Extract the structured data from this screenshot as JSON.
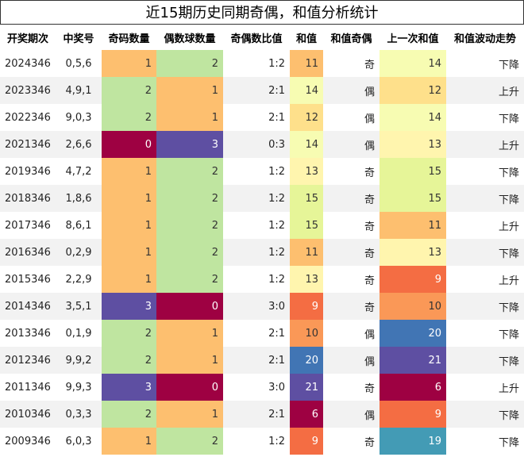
{
  "title": "近15期历史同期奇偶，和值分析统计",
  "colormap": "Spectral",
  "table": {
    "columns": [
      "开奖期次",
      "中奖号",
      "奇码数量",
      "偶数球数量",
      "奇偶数比值",
      "和值",
      "和值奇偶",
      "上一次和值",
      "和值波动走势"
    ],
    "rows": [
      [
        "2024346",
        "0,5,6",
        1,
        2,
        "1:2",
        11,
        "奇",
        14,
        "下降"
      ],
      [
        "2023346",
        "4,9,1",
        2,
        1,
        "2:1",
        14,
        "偶",
        12,
        "上升"
      ],
      [
        "2022346",
        "9,0,3",
        2,
        1,
        "2:1",
        12,
        "偶",
        14,
        "下降"
      ],
      [
        "2021346",
        "2,6,6",
        0,
        3,
        "0:3",
        14,
        "偶",
        13,
        "上升"
      ],
      [
        "2019346",
        "4,7,2",
        1,
        2,
        "1:2",
        13,
        "奇",
        15,
        "下降"
      ],
      [
        "2018346",
        "1,8,6",
        1,
        2,
        "1:2",
        15,
        "奇",
        15,
        "下降"
      ],
      [
        "2017346",
        "8,6,1",
        1,
        2,
        "1:2",
        15,
        "奇",
        11,
        "上升"
      ],
      [
        "2016346",
        "0,2,9",
        1,
        2,
        "1:2",
        11,
        "奇",
        13,
        "下降"
      ],
      [
        "2015346",
        "2,2,9",
        1,
        2,
        "1:2",
        13,
        "奇",
        9,
        "上升"
      ],
      [
        "2014346",
        "3,5,1",
        3,
        0,
        "3:0",
        9,
        "奇",
        10,
        "下降"
      ],
      [
        "2013346",
        "0,1,9",
        2,
        1,
        "2:1",
        10,
        "偶",
        20,
        "下降"
      ],
      [
        "2012346",
        "9,9,2",
        2,
        1,
        "2:1",
        20,
        "偶",
        21,
        "下降"
      ],
      [
        "2011346",
        "9,9,3",
        3,
        0,
        "3:0",
        21,
        "奇",
        6,
        "上升"
      ],
      [
        "2010346",
        "0,3,3",
        2,
        1,
        "2:1",
        6,
        "偶",
        9,
        "下降"
      ],
      [
        "2009346",
        "6,0,3",
        1,
        2,
        "1:2",
        9,
        "奇",
        19,
        "下降"
      ]
    ]
  }
}
